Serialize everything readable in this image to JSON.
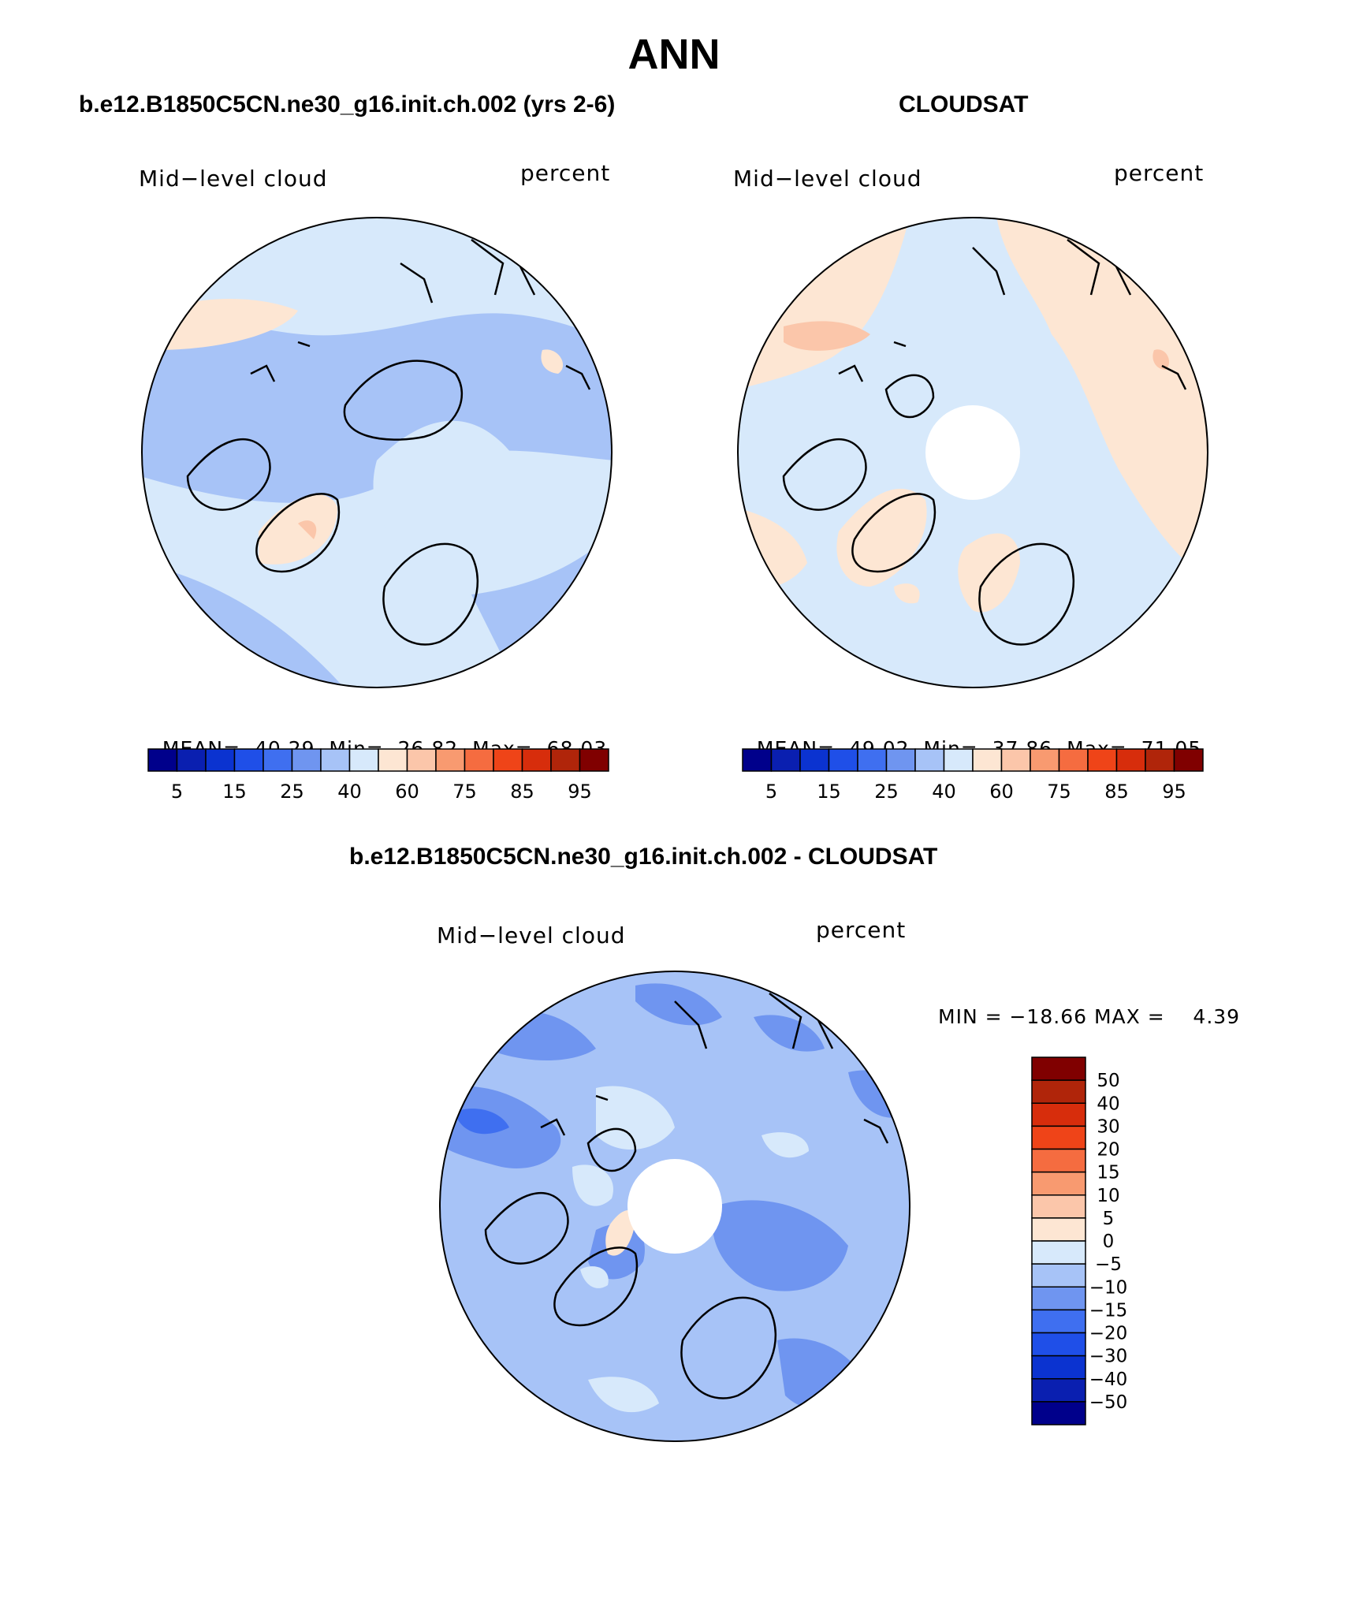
{
  "page_title": "ANN",
  "panels": [
    {
      "title": "b.e12.B1850C5CN.ne30_g16.init.ch.002 (yrs 2-6)",
      "left_label": "Mid−level cloud",
      "right_label": "percent",
      "stats": {
        "mean_label": "MEAN=",
        "mean": "40.29",
        "min_label": "Min=",
        "min": "26.82",
        "max_label": "Max=",
        "max": "68.03"
      },
      "has_pole_hole": false
    },
    {
      "title": "CLOUDSAT",
      "left_label": "Mid−level cloud",
      "right_label": "percent",
      "stats": {
        "mean_label": "MEAN=",
        "mean": "49.02",
        "min_label": "Min=",
        "min": "37.86",
        "max_label": "Max=",
        "max": "71.05"
      },
      "has_pole_hole": true
    },
    {
      "title": "b.e12.B1850C5CN.ne30_g16.init.ch.002 - CLOUDSAT",
      "left_label": "Mid−level cloud",
      "right_label": "percent",
      "stats_line": "MIN = −18.66 MAX =    4.39",
      "has_pole_hole": true
    }
  ],
  "absolute_colorbar": {
    "colors": [
      "#00008b",
      "#0a1fb0",
      "#0b33d0",
      "#1f4fe8",
      "#3f6ff0",
      "#6f95f0",
      "#a7c3f7",
      "#d7e9fb",
      "#fde6d3",
      "#fbc6aa",
      "#f89a70",
      "#f56c40",
      "#ef4418",
      "#d72d0c",
      "#b0250a",
      "#800000"
    ],
    "tick_labels": [
      "5",
      "15",
      "25",
      "40",
      "60",
      "75",
      "85",
      "95"
    ]
  },
  "difference_colorbar": {
    "colors": [
      "#800000",
      "#b0250a",
      "#d72d0c",
      "#ef4418",
      "#f56c40",
      "#f89a70",
      "#fbc6aa",
      "#fde6d3",
      "#d7e9fb",
      "#a7c3f7",
      "#6f95f0",
      "#3f6ff0",
      "#1f4fe8",
      "#0b33d0",
      "#0a1fb0",
      "#00008b"
    ],
    "tick_labels": [
      "50",
      "40",
      "30",
      "20",
      "15",
      "10",
      "5",
      "0",
      "−5",
      "−10",
      "−15",
      "−20",
      "−30",
      "−40",
      "−50"
    ]
  }
}
